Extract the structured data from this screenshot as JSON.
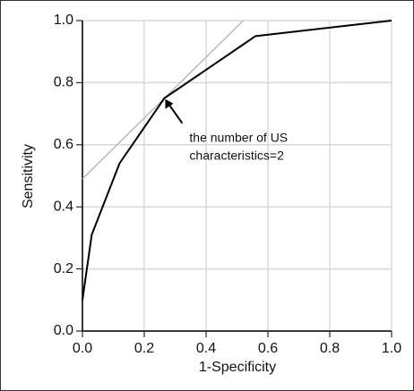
{
  "chart_data": {
    "type": "line",
    "x_label": "1-Specificity",
    "y_label": "Sensitivity",
    "series": [
      {
        "x": [
          0,
          0.03,
          0.12,
          0.265,
          0.56,
          1.0
        ],
        "values": [
          0.1,
          0.31,
          0.54,
          0.75,
          0.95,
          1.0
        ],
        "color": "#000000"
      }
    ],
    "reference_line": {
      "x": [
        0,
        0.52
      ],
      "values": [
        0.49,
        1.0
      ],
      "color": "#bbbbbb"
    },
    "annotation": {
      "lines": [
        "the number of US",
        "characteristics=2"
      ],
      "x": 0.265,
      "y": 0.75
    },
    "xlim": [
      0,
      1
    ],
    "ylim": [
      0,
      1
    ],
    "xticks": [
      {
        "value": 0,
        "label": "0.0"
      },
      {
        "value": 0.2,
        "label": "0.2"
      },
      {
        "value": 0.4,
        "label": "0.4"
      },
      {
        "value": 0.6,
        "label": "0.6"
      },
      {
        "value": 0.8,
        "label": "0.8"
      },
      {
        "value": 1,
        "label": "1.0"
      }
    ],
    "yticks": [
      {
        "value": 0,
        "label": "0.0"
      },
      {
        "value": 0.2,
        "label": "0.2"
      },
      {
        "value": 0.4,
        "label": "0.4"
      },
      {
        "value": 0.6,
        "label": "0.6"
      },
      {
        "value": 0.8,
        "label": "0.8"
      },
      {
        "value": 1,
        "label": "1.0"
      }
    ],
    "grid": true
  }
}
